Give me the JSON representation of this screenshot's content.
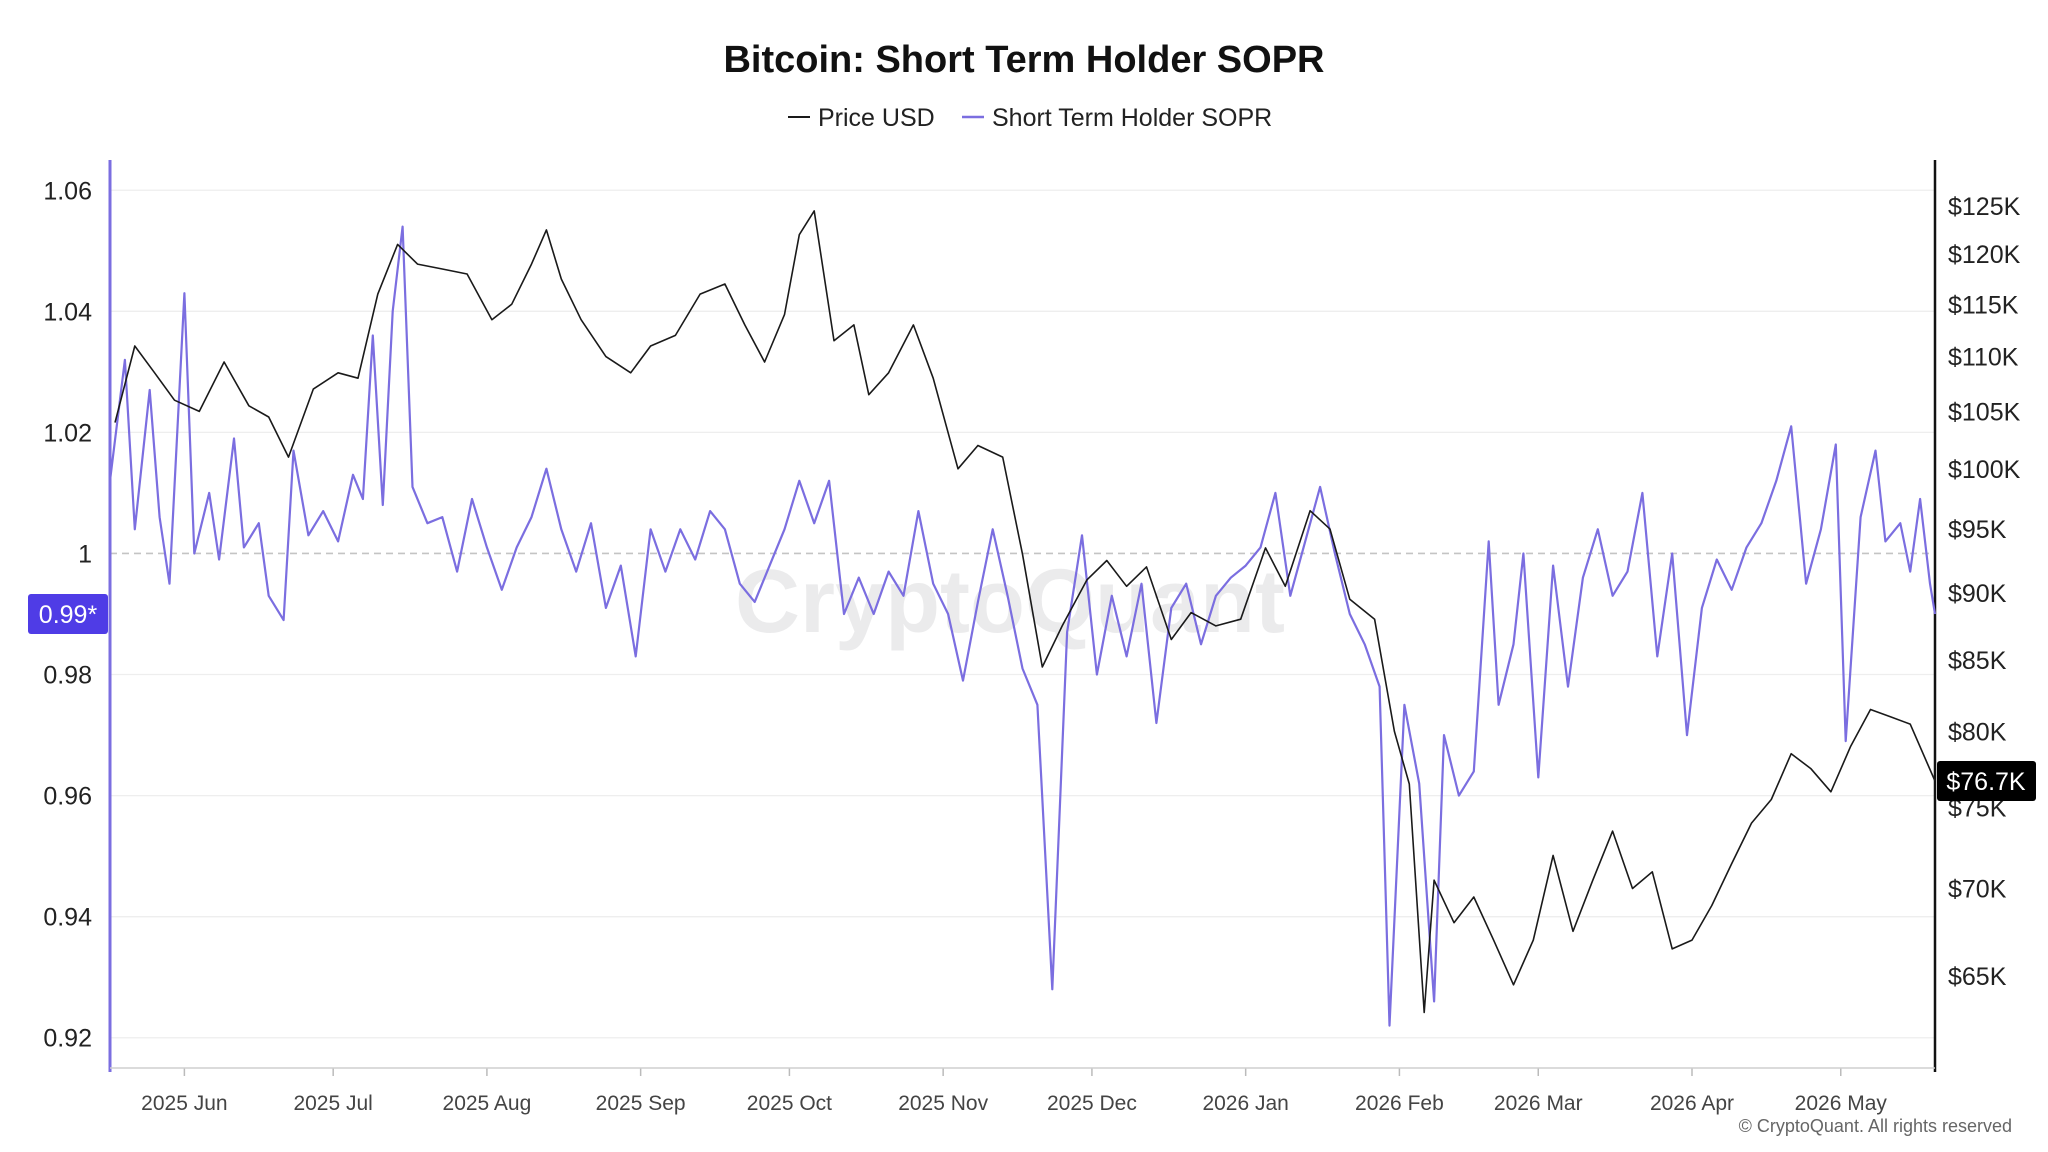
{
  "chart_data": {
    "type": "line",
    "title": "Bitcoin: Short Term Holder SOPR",
    "legend": {
      "placement": "top-center"
    },
    "watermark": "CryptoQuant",
    "footer": "© CryptoQuant. All rights reserved",
    "x_tick_labels": [
      "2025 Jun",
      "2025 Jul",
      "2025 Aug",
      "2025 Sep",
      "2025 Oct",
      "2025 Nov",
      "2025 Dec",
      "2026 Jan",
      "2026 Feb",
      "2026 Mar",
      "2026 Apr",
      "2026 May"
    ],
    "x_range": [
      "2025-05-17",
      "2026-05-20"
    ],
    "left_axis": {
      "ticks": [
        "0.92",
        "0.94",
        "0.96",
        "0.98",
        "1",
        "1.02",
        "1.04",
        "1.06"
      ],
      "range": [
        0.915,
        1.065
      ],
      "reference_line": 1,
      "current_label": "0.99*"
    },
    "right_axis": {
      "scale": "log",
      "ticks": [
        "$65K",
        "$70K",
        "$75K",
        "$80K",
        "$85K",
        "$90K",
        "$95K",
        "$100K",
        "$105K",
        "$110K",
        "$115K",
        "$120K",
        "$125K"
      ],
      "tick_values": [
        65000,
        70000,
        75000,
        80000,
        85000,
        90000,
        95000,
        100000,
        105000,
        110000,
        115000,
        120000,
        125000
      ],
      "range": [
        60100,
        130000
      ],
      "current_label": "$76.7K"
    },
    "grid": true,
    "colors": {
      "price": "#1a1a1a",
      "sopr": "#7b6ee0",
      "badge_sopr": "#4f3ce6",
      "badge_price": "#000000"
    },
    "series": [
      {
        "name": "Price USD",
        "axis": "right",
        "points": [
          [
            "2025-05-18",
            104000
          ],
          [
            "2025-05-22",
            111000
          ],
          [
            "2025-05-26",
            108500
          ],
          [
            "2025-05-30",
            106000
          ],
          [
            "2025-06-04",
            105000
          ],
          [
            "2025-06-09",
            109500
          ],
          [
            "2025-06-14",
            105500
          ],
          [
            "2025-06-18",
            104500
          ],
          [
            "2025-06-22",
            101000
          ],
          [
            "2025-06-27",
            107000
          ],
          [
            "2025-07-02",
            108500
          ],
          [
            "2025-07-06",
            108000
          ],
          [
            "2025-07-10",
            116000
          ],
          [
            "2025-07-14",
            121000
          ],
          [
            "2025-07-18",
            119000
          ],
          [
            "2025-07-23",
            118500
          ],
          [
            "2025-07-28",
            118000
          ],
          [
            "2025-08-02",
            113500
          ],
          [
            "2025-08-06",
            115000
          ],
          [
            "2025-08-10",
            119000
          ],
          [
            "2025-08-13",
            122500
          ],
          [
            "2025-08-16",
            117500
          ],
          [
            "2025-08-20",
            113500
          ],
          [
            "2025-08-25",
            110000
          ],
          [
            "2025-08-30",
            108500
          ],
          [
            "2025-09-03",
            111000
          ],
          [
            "2025-09-08",
            112000
          ],
          [
            "2025-09-13",
            116000
          ],
          [
            "2025-09-18",
            117000
          ],
          [
            "2025-09-22",
            113000
          ],
          [
            "2025-09-26",
            109500
          ],
          [
            "2025-09-30",
            114000
          ],
          [
            "2025-10-03",
            122000
          ],
          [
            "2025-10-06",
            124500
          ],
          [
            "2025-10-10",
            111500
          ],
          [
            "2025-10-14",
            113000
          ],
          [
            "2025-10-17",
            106500
          ],
          [
            "2025-10-21",
            108500
          ],
          [
            "2025-10-26",
            113000
          ],
          [
            "2025-10-30",
            108000
          ],
          [
            "2025-11-04",
            100000
          ],
          [
            "2025-11-08",
            102000
          ],
          [
            "2025-11-13",
            101000
          ],
          [
            "2025-11-17",
            93000
          ],
          [
            "2025-11-21",
            84500
          ],
          [
            "2025-11-25",
            87500
          ],
          [
            "2025-11-30",
            91000
          ],
          [
            "2025-12-04",
            92500
          ],
          [
            "2025-12-08",
            90500
          ],
          [
            "2025-12-12",
            92000
          ],
          [
            "2025-12-17",
            86500
          ],
          [
            "2025-12-21",
            88500
          ],
          [
            "2025-12-26",
            87500
          ],
          [
            "2025-12-31",
            88000
          ],
          [
            "2026-01-05",
            93500
          ],
          [
            "2026-01-09",
            90500
          ],
          [
            "2026-01-14",
            96500
          ],
          [
            "2026-01-18",
            95000
          ],
          [
            "2026-01-22",
            89500
          ],
          [
            "2026-01-27",
            88000
          ],
          [
            "2026-01-31",
            80000
          ],
          [
            "2026-02-03",
            76500
          ],
          [
            "2026-02-06",
            63000
          ],
          [
            "2026-02-08",
            70500
          ],
          [
            "2026-02-12",
            68000
          ],
          [
            "2026-02-16",
            69500
          ],
          [
            "2026-02-20",
            67000
          ],
          [
            "2026-02-24",
            64500
          ],
          [
            "2026-02-28",
            67000
          ],
          [
            "2026-03-04",
            72000
          ],
          [
            "2026-03-08",
            67500
          ],
          [
            "2026-03-12",
            70500
          ],
          [
            "2026-03-16",
            73500
          ],
          [
            "2026-03-20",
            70000
          ],
          [
            "2026-03-24",
            71000
          ],
          [
            "2026-03-28",
            66500
          ],
          [
            "2026-04-01",
            67000
          ],
          [
            "2026-04-05",
            69000
          ],
          [
            "2026-04-09",
            71500
          ],
          [
            "2026-04-13",
            74000
          ],
          [
            "2026-04-17",
            75500
          ],
          [
            "2026-04-21",
            78500
          ],
          [
            "2026-04-25",
            77500
          ],
          [
            "2026-04-29",
            76000
          ],
          [
            "2026-05-03",
            79000
          ],
          [
            "2026-05-07",
            81500
          ],
          [
            "2026-05-11",
            81000
          ],
          [
            "2026-05-15",
            80500
          ],
          [
            "2026-05-20",
            76700
          ]
        ]
      },
      {
        "name": "Short Term Holder SOPR",
        "axis": "left",
        "points": [
          [
            "2025-05-17",
            1.012
          ],
          [
            "2025-05-20",
            1.032
          ],
          [
            "2025-05-22",
            1.004
          ],
          [
            "2025-05-25",
            1.027
          ],
          [
            "2025-05-27",
            1.006
          ],
          [
            "2025-05-29",
            0.995
          ],
          [
            "2025-06-01",
            1.043
          ],
          [
            "2025-06-03",
            1.0
          ],
          [
            "2025-06-06",
            1.01
          ],
          [
            "2025-06-08",
            0.999
          ],
          [
            "2025-06-11",
            1.019
          ],
          [
            "2025-06-13",
            1.001
          ],
          [
            "2025-06-16",
            1.005
          ],
          [
            "2025-06-18",
            0.993
          ],
          [
            "2025-06-21",
            0.989
          ],
          [
            "2025-06-23",
            1.017
          ],
          [
            "2025-06-26",
            1.003
          ],
          [
            "2025-06-29",
            1.007
          ],
          [
            "2025-07-02",
            1.002
          ],
          [
            "2025-07-05",
            1.013
          ],
          [
            "2025-07-07",
            1.009
          ],
          [
            "2025-07-09",
            1.036
          ],
          [
            "2025-07-11",
            1.008
          ],
          [
            "2025-07-13",
            1.04
          ],
          [
            "2025-07-15",
            1.054
          ],
          [
            "2025-07-17",
            1.011
          ],
          [
            "2025-07-20",
            1.005
          ],
          [
            "2025-07-23",
            1.006
          ],
          [
            "2025-07-26",
            0.997
          ],
          [
            "2025-07-29",
            1.009
          ],
          [
            "2025-08-01",
            1.001
          ],
          [
            "2025-08-04",
            0.994
          ],
          [
            "2025-08-07",
            1.001
          ],
          [
            "2025-08-10",
            1.006
          ],
          [
            "2025-08-13",
            1.014
          ],
          [
            "2025-08-16",
            1.004
          ],
          [
            "2025-08-19",
            0.997
          ],
          [
            "2025-08-22",
            1.005
          ],
          [
            "2025-08-25",
            0.991
          ],
          [
            "2025-08-28",
            0.998
          ],
          [
            "2025-08-31",
            0.983
          ],
          [
            "2025-09-03",
            1.004
          ],
          [
            "2025-09-06",
            0.997
          ],
          [
            "2025-09-09",
            1.004
          ],
          [
            "2025-09-12",
            0.999
          ],
          [
            "2025-09-15",
            1.007
          ],
          [
            "2025-09-18",
            1.004
          ],
          [
            "2025-09-21",
            0.995
          ],
          [
            "2025-09-24",
            0.992
          ],
          [
            "2025-09-27",
            0.998
          ],
          [
            "2025-09-30",
            1.004
          ],
          [
            "2025-10-03",
            1.012
          ],
          [
            "2025-10-06",
            1.005
          ],
          [
            "2025-10-09",
            1.012
          ],
          [
            "2025-10-12",
            0.99
          ],
          [
            "2025-10-15",
            0.996
          ],
          [
            "2025-10-18",
            0.99
          ],
          [
            "2025-10-21",
            0.997
          ],
          [
            "2025-10-24",
            0.993
          ],
          [
            "2025-10-27",
            1.007
          ],
          [
            "2025-10-30",
            0.995
          ],
          [
            "2025-11-02",
            0.99
          ],
          [
            "2025-11-05",
            0.979
          ],
          [
            "2025-11-08",
            0.992
          ],
          [
            "2025-11-11",
            1.004
          ],
          [
            "2025-11-14",
            0.993
          ],
          [
            "2025-11-17",
            0.981
          ],
          [
            "2025-11-20",
            0.975
          ],
          [
            "2025-11-23",
            0.928
          ],
          [
            "2025-11-26",
            0.987
          ],
          [
            "2025-11-29",
            1.003
          ],
          [
            "2025-12-02",
            0.98
          ],
          [
            "2025-12-05",
            0.993
          ],
          [
            "2025-12-08",
            0.983
          ],
          [
            "2025-12-11",
            0.995
          ],
          [
            "2025-12-14",
            0.972
          ],
          [
            "2025-12-17",
            0.991
          ],
          [
            "2025-12-20",
            0.995
          ],
          [
            "2025-12-23",
            0.985
          ],
          [
            "2025-12-26",
            0.993
          ],
          [
            "2025-12-29",
            0.996
          ],
          [
            "2026-01-01",
            0.998
          ],
          [
            "2026-01-04",
            1.001
          ],
          [
            "2026-01-07",
            1.01
          ],
          [
            "2026-01-10",
            0.993
          ],
          [
            "2026-01-13",
            1.002
          ],
          [
            "2026-01-16",
            1.011
          ],
          [
            "2026-01-19",
            1.0
          ],
          [
            "2026-01-22",
            0.99
          ],
          [
            "2026-01-25",
            0.985
          ],
          [
            "2026-01-28",
            0.978
          ],
          [
            "2026-01-30",
            0.922
          ],
          [
            "2026-02-02",
            0.975
          ],
          [
            "2026-02-05",
            0.962
          ],
          [
            "2026-02-08",
            0.926
          ],
          [
            "2026-02-10",
            0.97
          ],
          [
            "2026-02-13",
            0.96
          ],
          [
            "2026-02-16",
            0.964
          ],
          [
            "2026-02-19",
            1.002
          ],
          [
            "2026-02-21",
            0.975
          ],
          [
            "2026-02-24",
            0.985
          ],
          [
            "2026-02-26",
            1.0
          ],
          [
            "2026-03-01",
            0.963
          ],
          [
            "2026-03-04",
            0.998
          ],
          [
            "2026-03-07",
            0.978
          ],
          [
            "2026-03-10",
            0.996
          ],
          [
            "2026-03-13",
            1.004
          ],
          [
            "2026-03-16",
            0.993
          ],
          [
            "2026-03-19",
            0.997
          ],
          [
            "2026-03-22",
            1.01
          ],
          [
            "2026-03-25",
            0.983
          ],
          [
            "2026-03-28",
            1.0
          ],
          [
            "2026-03-31",
            0.97
          ],
          [
            "2026-04-03",
            0.991
          ],
          [
            "2026-04-06",
            0.999
          ],
          [
            "2026-04-09",
            0.994
          ],
          [
            "2026-04-12",
            1.001
          ],
          [
            "2026-04-15",
            1.005
          ],
          [
            "2026-04-18",
            1.012
          ],
          [
            "2026-04-21",
            1.021
          ],
          [
            "2026-04-24",
            0.995
          ],
          [
            "2026-04-27",
            1.004
          ],
          [
            "2026-04-30",
            1.018
          ],
          [
            "2026-05-02",
            0.969
          ],
          [
            "2026-05-05",
            1.006
          ],
          [
            "2026-05-08",
            1.017
          ],
          [
            "2026-05-10",
            1.002
          ],
          [
            "2026-05-13",
            1.005
          ],
          [
            "2026-05-15",
            0.997
          ],
          [
            "2026-05-17",
            1.009
          ],
          [
            "2026-05-19",
            0.995
          ],
          [
            "2026-05-20",
            0.99
          ]
        ]
      }
    ]
  }
}
